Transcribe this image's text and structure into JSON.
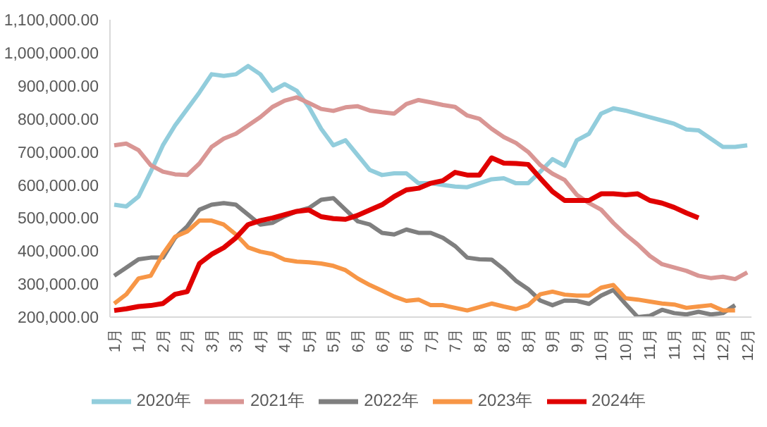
{
  "chart_data": {
    "type": "line",
    "categories": [
      "1月",
      null,
      "1月",
      null,
      "2月",
      null,
      "2月",
      null,
      "3月",
      null,
      "3月",
      null,
      "4月",
      null,
      "4月",
      null,
      "5月",
      null,
      "5月",
      null,
      "6月",
      null,
      "6月",
      null,
      "6月",
      null,
      "7月",
      null,
      "7月",
      null,
      "8月",
      null,
      "8月",
      null,
      "8月",
      null,
      "9月",
      null,
      "9月",
      null,
      "10月",
      null,
      "10月",
      null,
      "11月",
      null,
      "11月",
      null,
      "12月",
      null,
      "12月",
      null,
      "12月"
    ],
    "series": [
      {
        "name": "2020年",
        "color": "#92cddc",
        "values": [
          540000,
          535000,
          565000,
          640000,
          720000,
          780000,
          830000,
          880000,
          935000,
          930000,
          935000,
          960000,
          935000,
          885000,
          905000,
          885000,
          835000,
          770000,
          720000,
          735000,
          690000,
          645000,
          630000,
          635000,
          635000,
          605000,
          605000,
          600000,
          595000,
          593000,
          605000,
          617000,
          620000,
          605000,
          605000,
          640000,
          678000,
          658000,
          735000,
          755000,
          816000,
          832000,
          825000,
          815000,
          805000,
          795000,
          785000,
          768000,
          765000,
          740000,
          715000,
          715000,
          720000
        ]
      },
      {
        "name": "2021年",
        "color": "#d99694",
        "values": [
          720000,
          725000,
          705000,
          660000,
          640000,
          632000,
          630000,
          665000,
          715000,
          740000,
          755000,
          780000,
          805000,
          836000,
          855000,
          865000,
          848000,
          830000,
          824000,
          835000,
          838000,
          825000,
          820000,
          816000,
          845000,
          857000,
          850000,
          842000,
          836000,
          810000,
          800000,
          770000,
          745000,
          727000,
          700000,
          660000,
          634000,
          615000,
          570000,
          545000,
          525000,
          485000,
          450000,
          420000,
          385000,
          360000,
          350000,
          340000,
          325000,
          318000,
          322000,
          315000,
          335000
        ]
      },
      {
        "name": "2022年",
        "color": "#7f7f7f",
        "values": [
          325000,
          350000,
          375000,
          380000,
          380000,
          440000,
          475000,
          525000,
          540000,
          545000,
          540000,
          510000,
          480000,
          485000,
          505000,
          520000,
          530000,
          555000,
          560000,
          525000,
          490000,
          480000,
          455000,
          450000,
          465000,
          455000,
          455000,
          440000,
          415000,
          380000,
          375000,
          374000,
          345000,
          310000,
          285000,
          250000,
          236000,
          250000,
          249000,
          240000,
          265000,
          282000,
          240000,
          200000,
          204000,
          222000,
          212000,
          208000,
          216000,
          208000,
          212000,
          236000,
          null
        ]
      },
      {
        "name": "2023年",
        "color": "#f79646",
        "values": [
          241000,
          269000,
          317000,
          325000,
          391000,
          443000,
          459000,
          492000,
          492000,
          480000,
          450000,
          411000,
          398000,
          391000,
          374000,
          368000,
          366000,
          362000,
          355000,
          342000,
          317000,
          297000,
          280000,
          262000,
          249000,
          253000,
          236000,
          236000,
          228000,
          220000,
          230000,
          241000,
          232000,
          224000,
          236000,
          269000,
          277000,
          268000,
          265000,
          265000,
          289000,
          297000,
          257000,
          253000,
          247000,
          241000,
          238000,
          228000,
          232000,
          236000,
          220000,
          220000,
          null
        ]
      },
      {
        "name": "2024年",
        "color": "#e00000",
        "values": [
          220000,
          225000,
          232000,
          235000,
          241000,
          269000,
          277000,
          362000,
          390000,
          410000,
          440000,
          480000,
          492000,
          500000,
          510000,
          520000,
          524000,
          504000,
          498000,
          496000,
          508000,
          524000,
          540000,
          565000,
          585000,
          590000,
          605000,
          613000,
          638000,
          630000,
          630000,
          682000,
          666000,
          665000,
          662000,
          620000,
          580000,
          553000,
          553000,
          553000,
          573000,
          573000,
          570000,
          573000,
          553000,
          545000,
          532000,
          515000,
          500000,
          null,
          null,
          null,
          null
        ]
      }
    ],
    "ylim": [
      200000,
      1100000
    ],
    "yticks": [
      {
        "value": 200000,
        "label": "200,000.00"
      },
      {
        "value": 300000,
        "label": "300,000.00"
      },
      {
        "value": 400000,
        "label": "400,000.00"
      },
      {
        "value": 500000,
        "label": "500,000.00"
      },
      {
        "value": 600000,
        "label": "600,000.00"
      },
      {
        "value": 700000,
        "label": "700,000.00"
      },
      {
        "value": 800000,
        "label": "800,000.00"
      },
      {
        "value": 900000,
        "label": "900,000.00"
      },
      {
        "value": 1000000,
        "label": "1,000,000.00"
      },
      {
        "value": 1100000,
        "label": "1,100,000.00"
      }
    ],
    "grid": false,
    "legend": "bottom",
    "marker": "none",
    "line_style": "solid"
  }
}
